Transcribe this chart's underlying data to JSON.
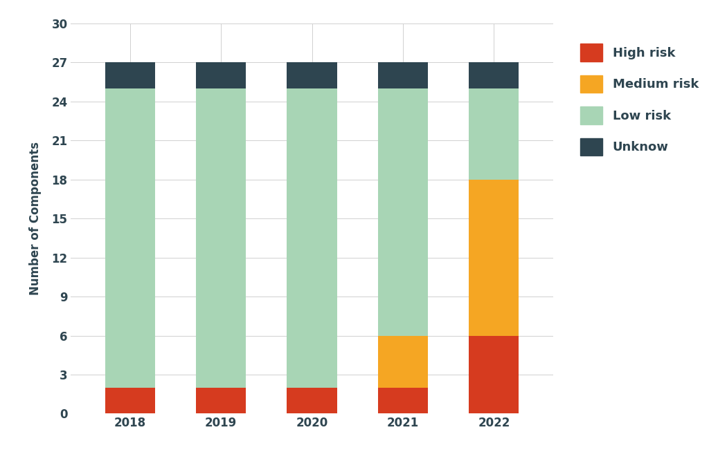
{
  "years": [
    "2018",
    "2019",
    "2020",
    "2021",
    "2022"
  ],
  "high_risk": [
    2,
    2,
    2,
    2,
    6
  ],
  "medium_risk": [
    0,
    0,
    0,
    4,
    12
  ],
  "low_risk": [
    23,
    23,
    23,
    19,
    7
  ],
  "unknown": [
    2,
    2,
    2,
    2,
    2
  ],
  "colors": {
    "high_risk": "#d63b1f",
    "medium_risk": "#f5a623",
    "low_risk": "#a8d5b5",
    "unknown": "#2e4550"
  },
  "legend_labels": [
    "High risk",
    "Medium risk",
    "Low risk",
    "Unknow"
  ],
  "ylabel": "Number of Components",
  "ylim": [
    0,
    30
  ],
  "yticks": [
    0,
    3,
    6,
    9,
    12,
    15,
    18,
    21,
    24,
    27,
    30
  ],
  "background_color": "#ffffff",
  "plot_bg_color": "#ffffff",
  "bar_width": 0.55,
  "axis_fontsize": 12,
  "tick_fontsize": 12,
  "legend_fontsize": 13,
  "grid_color": "#d0d0d0",
  "tick_label_color": "#2e4550",
  "ylabel_color": "#2e4550"
}
